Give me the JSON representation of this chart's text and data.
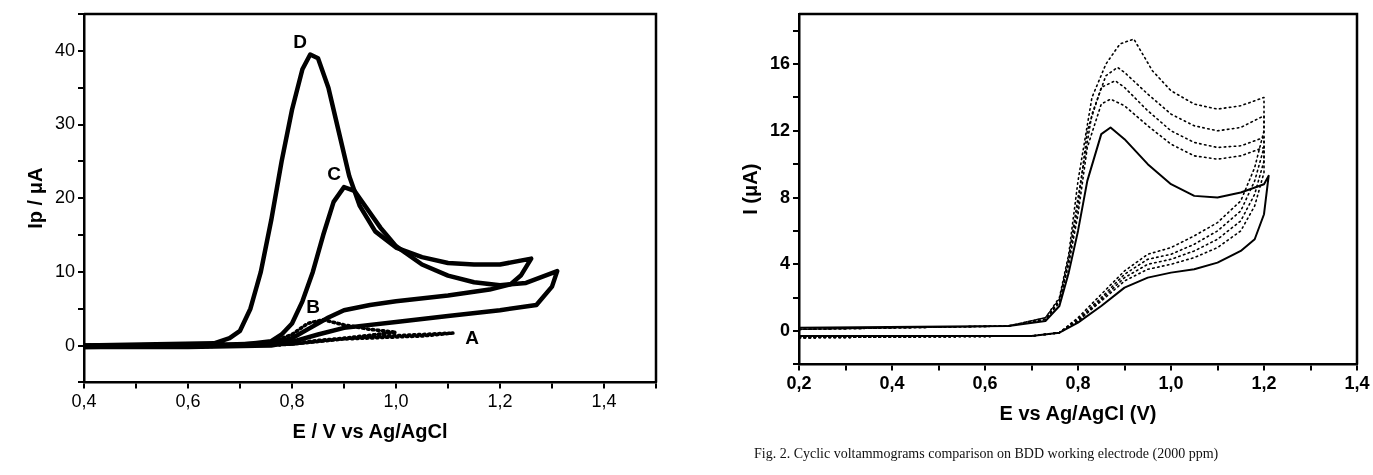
{
  "chart_data": [
    {
      "type": "line",
      "xlabel": "E / V vs Ag/AgCl",
      "ylabel": "Ip / μA",
      "xlim": [
        0.4,
        1.5
      ],
      "xticks": [
        {
          "value": 0.4,
          "label": "0,4"
        },
        {
          "value": 0.5,
          "label": null
        },
        {
          "value": 0.6,
          "label": "0,6"
        },
        {
          "value": 0.7,
          "label": null
        },
        {
          "value": 0.8,
          "label": "0,8"
        },
        {
          "value": 0.9,
          "label": null
        },
        {
          "value": 1.0,
          "label": "1,0"
        },
        {
          "value": 1.1,
          "label": null
        },
        {
          "value": 1.2,
          "label": "1,2"
        },
        {
          "value": 1.3,
          "label": null
        },
        {
          "value": 1.4,
          "label": "1,4"
        },
        {
          "value": 1.5,
          "label": null
        }
      ],
      "ylim": [
        -5,
        45
      ],
      "yticks": [
        {
          "value": -5,
          "label": null
        },
        0,
        {
          "value": 5,
          "label": null
        },
        10,
        {
          "value": 15,
          "label": null
        },
        20,
        {
          "value": 25,
          "label": null
        },
        30,
        {
          "value": 35,
          "label": null
        },
        40,
        {
          "value": 45,
          "label": null
        }
      ],
      "series": [
        {
          "name": "A",
          "color": "#000000",
          "line_style": "dotted",
          "x": [
            0.4,
            0.6,
            0.78,
            0.85,
            0.95,
            1.05,
            1.11,
            1.05,
            0.9,
            0.8,
            0.6,
            0.4
          ],
          "values": [
            0,
            0,
            0.1,
            0.7,
            1.2,
            1.5,
            1.7,
            1.3,
            0.9,
            0.2,
            -0.2,
            -0.2
          ]
        },
        {
          "name": "B",
          "color": "#000000",
          "line_style": "dotted",
          "x": [
            0.4,
            0.6,
            0.75,
            0.8,
            0.83,
            0.86,
            0.9,
            0.95,
            1.0,
            0.95,
            0.9,
            0.8,
            0.6,
            0.4
          ],
          "values": [
            0,
            0,
            0.2,
            1.5,
            3,
            3.5,
            2.8,
            2.2,
            1.8,
            1.4,
            1,
            0.2,
            -0.1,
            -0.2
          ]
        },
        {
          "name": "C",
          "color": "#000000",
          "x": [
            0.4,
            0.7,
            0.76,
            0.78,
            0.8,
            0.82,
            0.84,
            0.86,
            0.88,
            0.9,
            0.92,
            0.94,
            0.97,
            1.0,
            1.05,
            1.1,
            1.15,
            1.2,
            1.25,
            1.31,
            1.3,
            1.27,
            1.2,
            1.1,
            1.0,
            0.9,
            0.85,
            0.8,
            0.76,
            0.6,
            0.4
          ],
          "values": [
            0,
            0.1,
            0.6,
            1.5,
            3,
            6,
            10,
            15,
            19.5,
            21.5,
            21,
            19,
            16,
            13.5,
            11,
            9.5,
            8.6,
            8.2,
            8.5,
            10.1,
            8,
            5.5,
            4.8,
            4,
            3.2,
            2.4,
            1.5,
            0.5,
            0,
            -0.2,
            -0.2
          ]
        },
        {
          "name": "D",
          "color": "#000000",
          "x": [
            0.4,
            0.65,
            0.68,
            0.7,
            0.72,
            0.74,
            0.76,
            0.78,
            0.8,
            0.82,
            0.835,
            0.85,
            0.87,
            0.89,
            0.91,
            0.93,
            0.96,
            1.0,
            1.05,
            1.1,
            1.15,
            1.2,
            1.26,
            1.24,
            1.22,
            1.18,
            1.1,
            1.0,
            0.95,
            0.9,
            0.87,
            0.83,
            0.8,
            0.76,
            0.6,
            0.4
          ],
          "values": [
            0,
            0.3,
            1,
            2,
            5,
            10,
            17,
            25,
            32,
            37.5,
            39.5,
            39,
            35,
            29,
            23,
            19,
            15.5,
            13.3,
            12,
            11.2,
            11,
            11,
            11.8,
            9.5,
            8.3,
            7.6,
            6.8,
            6,
            5.5,
            4.8,
            3.8,
            2.2,
            1,
            0.3,
            0,
            -0.2
          ]
        }
      ]
    },
    {
      "type": "line",
      "xlabel": "E vs Ag/AgCl (V)",
      "ylabel": "I (μA)",
      "xlim": [
        0.2,
        1.4
      ],
      "xticks": [
        {
          "value": 0.2,
          "label": "0,2"
        },
        {
          "value": 0.3,
          "label": null
        },
        {
          "value": 0.4,
          "label": "0,4"
        },
        {
          "value": 0.5,
          "label": null
        },
        {
          "value": 0.6,
          "label": "0,6"
        },
        {
          "value": 0.7,
          "label": null
        },
        {
          "value": 0.8,
          "label": "0,8"
        },
        {
          "value": 0.9,
          "label": null
        },
        {
          "value": 1.0,
          "label": "1,0"
        },
        {
          "value": 1.1,
          "label": null
        },
        {
          "value": 1.2,
          "label": "1,2"
        },
        {
          "value": 1.3,
          "label": null
        },
        {
          "value": 1.4,
          "label": "1,4"
        }
      ],
      "ylim": [
        -2,
        19
      ],
      "yticks": [
        {
          "value": -2,
          "label": null
        },
        0,
        {
          "value": 2,
          "label": null
        },
        4,
        {
          "value": 6,
          "label": null
        },
        8,
        {
          "value": 10,
          "label": null
        },
        12,
        {
          "value": 14,
          "label": null
        },
        16,
        {
          "value": 18,
          "label": null
        }
      ],
      "series": [
        {
          "color": "#000000",
          "x": [
            0.2,
            0.7,
            0.76,
            0.8,
            0.85,
            0.9,
            0.95,
            1.0,
            1.05,
            1.1,
            1.15,
            1.18,
            1.2,
            1.21,
            1.2,
            1.15,
            1.1,
            1.05,
            1.0,
            0.95,
            0.9,
            0.87,
            0.85,
            0.82,
            0.8,
            0.78,
            0.76,
            0.73,
            0.65,
            0.2
          ],
          "values": [
            -0.3,
            -0.3,
            -0.1,
            0.5,
            1.5,
            2.6,
            3.2,
            3.5,
            3.7,
            4.1,
            4.8,
            5.5,
            7,
            9.3,
            8.8,
            8.3,
            8.0,
            8.1,
            8.8,
            10,
            11.5,
            12.2,
            11.8,
            9,
            6,
            3.5,
            1.5,
            0.6,
            0.3,
            0.2
          ]
        },
        {
          "color": "#000000",
          "line_style": "dotted",
          "x": [
            0.2,
            0.7,
            0.76,
            0.8,
            0.85,
            0.9,
            0.95,
            1.0,
            1.05,
            1.1,
            1.15,
            1.18,
            1.2,
            1.2,
            1.15,
            1.1,
            1.05,
            1.0,
            0.95,
            0.9,
            0.87,
            0.85,
            0.82,
            0.8,
            0.78,
            0.76,
            0.73,
            0.65,
            0.2
          ],
          "values": [
            -0.4,
            -0.3,
            -0.1,
            0.6,
            1.8,
            3.0,
            3.7,
            4.0,
            4.4,
            5.0,
            6.0,
            7.5,
            9.5,
            11.0,
            10.5,
            10.3,
            10.5,
            11.2,
            12.3,
            13.5,
            13.9,
            13.6,
            11,
            7,
            4,
            1.7,
            0.7,
            0.3,
            0.1
          ]
        },
        {
          "color": "#000000",
          "line_style": "dotted",
          "x": [
            0.2,
            0.7,
            0.76,
            0.8,
            0.85,
            0.9,
            0.95,
            1.0,
            1.05,
            1.1,
            1.15,
            1.18,
            1.2,
            1.2,
            1.15,
            1.1,
            1.05,
            1.0,
            0.95,
            0.9,
            0.88,
            0.85,
            0.82,
            0.8,
            0.78,
            0.76,
            0.73,
            0.65,
            0.2
          ],
          "values": [
            -0.4,
            -0.3,
            -0.1,
            0.6,
            1.9,
            3.2,
            4.0,
            4.3,
            4.8,
            5.5,
            6.6,
            8.2,
            10.2,
            11.6,
            11.1,
            11.0,
            11.3,
            12.0,
            13.2,
            14.6,
            15.0,
            14.6,
            12,
            7.5,
            4.2,
            1.8,
            0.7,
            0.3,
            0.1
          ]
        },
        {
          "color": "#000000",
          "line_style": "dotted",
          "x": [
            0.2,
            0.7,
            0.76,
            0.8,
            0.85,
            0.9,
            0.95,
            1.0,
            1.05,
            1.1,
            1.15,
            1.18,
            1.2,
            1.2,
            1.15,
            1.1,
            1.05,
            1.0,
            0.95,
            0.9,
            0.885,
            0.86,
            0.83,
            0.8,
            0.78,
            0.76,
            0.73,
            0.65,
            0.2
          ],
          "values": [
            -0.4,
            -0.3,
            -0.1,
            0.7,
            2.0,
            3.4,
            4.3,
            4.6,
            5.2,
            6.0,
            7.2,
            9.0,
            11.0,
            12.9,
            12.2,
            12.0,
            12.3,
            13.0,
            14.2,
            15.5,
            15.8,
            15.3,
            13,
            8,
            4.4,
            1.9,
            0.8,
            0.3,
            0.1
          ]
        },
        {
          "color": "#000000",
          "line_style": "dotted",
          "x": [
            0.2,
            0.7,
            0.76,
            0.8,
            0.85,
            0.9,
            0.95,
            1.0,
            1.05,
            1.1,
            1.15,
            1.18,
            1.2,
            1.2,
            1.15,
            1.1,
            1.05,
            1.0,
            0.96,
            0.92,
            0.89,
            0.86,
            0.83,
            0.8,
            0.78,
            0.76,
            0.73,
            0.65,
            0.2
          ],
          "values": [
            -0.4,
            -0.3,
            -0.1,
            0.8,
            2.2,
            3.6,
            4.6,
            5.0,
            5.7,
            6.5,
            7.8,
            9.8,
            12.0,
            14.0,
            13.5,
            13.3,
            13.6,
            14.4,
            15.6,
            17.5,
            17.2,
            16,
            14,
            9,
            4.6,
            2.0,
            0.8,
            0.3,
            0.1
          ]
        }
      ],
      "annotations": [
        "Fig. 2. Cyclic voltammograms comparison on BDD working electrode (2000 ppm)"
      ]
    }
  ]
}
